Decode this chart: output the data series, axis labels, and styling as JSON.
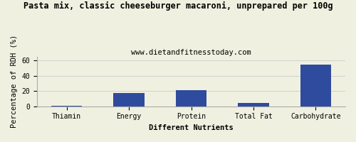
{
  "title": "Pasta mix, classic cheeseburger macaroni, unprepared per 100g",
  "subtitle": "www.dietandfitnesstoday.com",
  "categories": [
    "Thiamin",
    "Energy",
    "Protein",
    "Total Fat",
    "Carbohydrate"
  ],
  "values": [
    0.4,
    17.0,
    21.0,
    4.0,
    55.0
  ],
  "bar_color": "#2e4b9e",
  "xlabel": "Different Nutrients",
  "ylabel": "Percentage of RDH (%)",
  "ylim": [
    0,
    65
  ],
  "yticks": [
    0,
    20,
    40,
    60
  ],
  "background_color": "#f0f0e0",
  "title_fontsize": 8.5,
  "subtitle_fontsize": 7.5,
  "axis_label_fontsize": 7.5,
  "tick_fontsize": 7
}
